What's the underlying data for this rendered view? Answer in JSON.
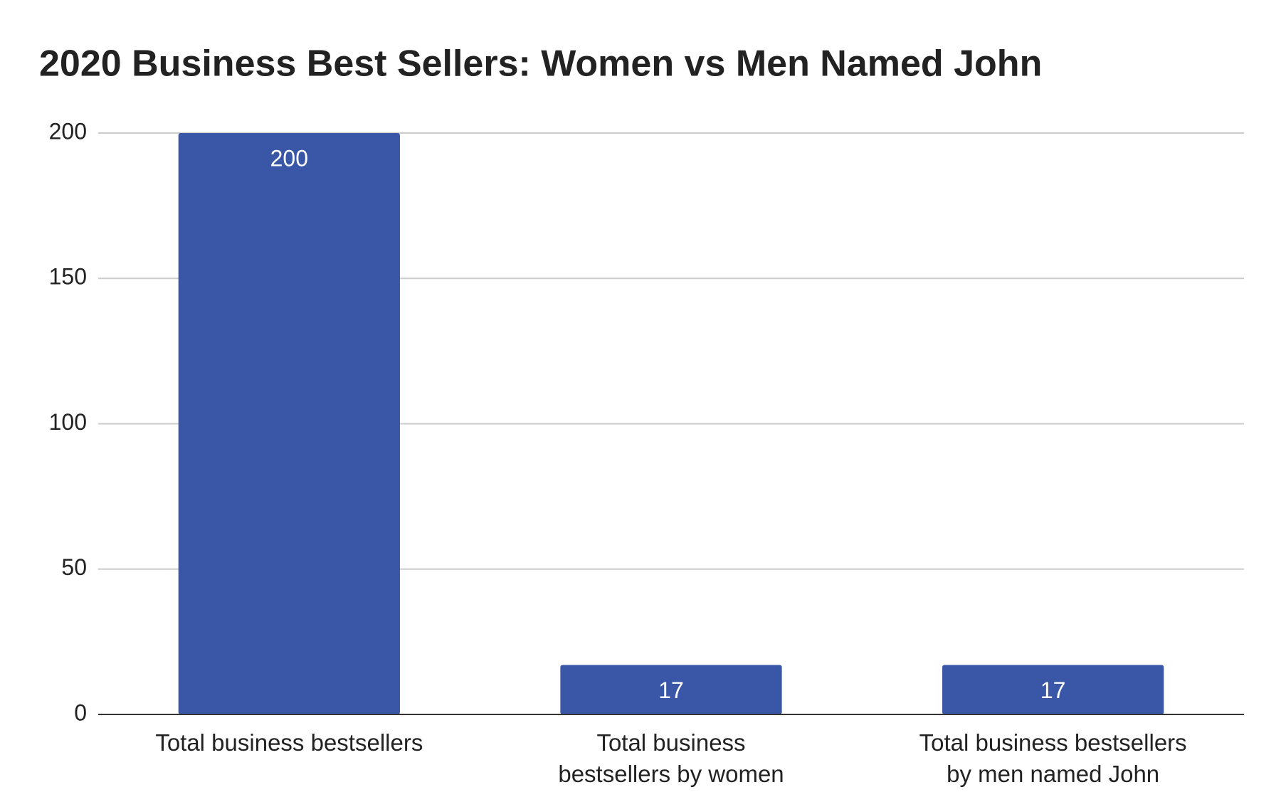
{
  "chart_data": {
    "type": "bar",
    "title": "2020 Business Best Sellers: Women vs Men Named John",
    "categories": [
      "Total business bestsellers",
      "Total business bestsellers by women",
      "Total business bestsellers by men named John"
    ],
    "values": [
      200,
      17,
      17
    ],
    "color": "#3a57a7",
    "ylim": [
      0,
      200
    ],
    "yticks": [
      0,
      50,
      100,
      150,
      200
    ],
    "grid": true
  }
}
